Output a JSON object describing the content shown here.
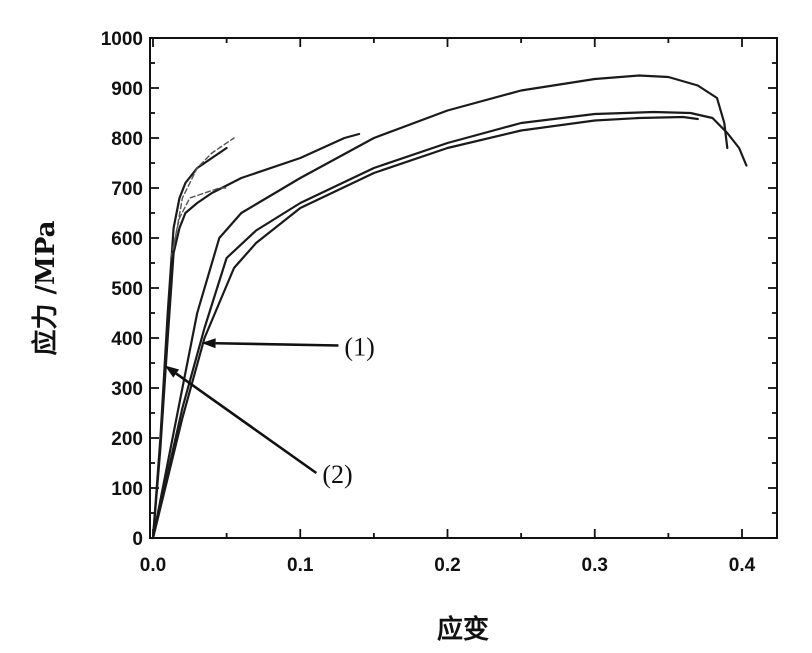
{
  "chart_data": {
    "type": "line",
    "title": "",
    "xlabel": "应变",
    "ylabel": "应力 /MPa",
    "xlim": [
      0.0,
      0.42
    ],
    "ylim": [
      0,
      1000
    ],
    "x_ticks": [
      0.0,
      0.1,
      0.2,
      0.3,
      0.4
    ],
    "x_tick_labels": [
      "0.0",
      "0.1",
      "0.2",
      "0.3",
      "0.4"
    ],
    "y_ticks": [
      0,
      100,
      200,
      300,
      400,
      500,
      600,
      700,
      800,
      900,
      1000
    ],
    "y_tick_labels": [
      "0",
      "100",
      "200",
      "300",
      "400",
      "500",
      "600",
      "700",
      "800",
      "900",
      "1000"
    ],
    "grid": false,
    "legend": "none",
    "series": [
      {
        "group": "(1)",
        "style": "solid",
        "points": [
          [
            0,
            0
          ],
          [
            0.01,
            150
          ],
          [
            0.02,
            300
          ],
          [
            0.03,
            450
          ],
          [
            0.045,
            600
          ],
          [
            0.06,
            650
          ],
          [
            0.1,
            720
          ],
          [
            0.15,
            800
          ],
          [
            0.2,
            855
          ],
          [
            0.25,
            895
          ],
          [
            0.3,
            918
          ],
          [
            0.33,
            925
          ],
          [
            0.35,
            922
          ],
          [
            0.37,
            905
          ],
          [
            0.383,
            880
          ],
          [
            0.388,
            830
          ],
          [
            0.39,
            780
          ]
        ]
      },
      {
        "group": "(1)",
        "style": "solid",
        "points": [
          [
            0,
            0
          ],
          [
            0.01,
            130
          ],
          [
            0.02,
            260
          ],
          [
            0.035,
            420
          ],
          [
            0.05,
            560
          ],
          [
            0.07,
            615
          ],
          [
            0.1,
            670
          ],
          [
            0.15,
            740
          ],
          [
            0.2,
            790
          ],
          [
            0.25,
            830
          ],
          [
            0.3,
            848
          ],
          [
            0.34,
            852
          ],
          [
            0.365,
            850
          ],
          [
            0.38,
            840
          ],
          [
            0.39,
            810
          ],
          [
            0.398,
            780
          ],
          [
            0.403,
            745
          ]
        ]
      },
      {
        "group": "(1)",
        "style": "solid",
        "points": [
          [
            0,
            0
          ],
          [
            0.01,
            120
          ],
          [
            0.02,
            240
          ],
          [
            0.035,
            400
          ],
          [
            0.055,
            540
          ],
          [
            0.07,
            590
          ],
          [
            0.1,
            660
          ],
          [
            0.15,
            730
          ],
          [
            0.2,
            780
          ],
          [
            0.25,
            815
          ],
          [
            0.3,
            835
          ],
          [
            0.33,
            840
          ],
          [
            0.36,
            842
          ],
          [
            0.37,
            838
          ]
        ]
      },
      {
        "group": "(2)",
        "style": "solid",
        "points": [
          [
            0,
            0
          ],
          [
            0.005,
            200
          ],
          [
            0.01,
            450
          ],
          [
            0.014,
            620
          ],
          [
            0.018,
            680
          ],
          [
            0.022,
            710
          ],
          [
            0.03,
            740
          ],
          [
            0.04,
            760
          ],
          [
            0.05,
            780
          ]
        ]
      },
      {
        "group": "(2)",
        "style": "solid",
        "points": [
          [
            0,
            0
          ],
          [
            0.005,
            180
          ],
          [
            0.01,
            400
          ],
          [
            0.014,
            570
          ],
          [
            0.018,
            620
          ],
          [
            0.022,
            650
          ],
          [
            0.03,
            670
          ],
          [
            0.04,
            690
          ],
          [
            0.06,
            720
          ],
          [
            0.1,
            760
          ],
          [
            0.13,
            800
          ],
          [
            0.14,
            808
          ]
        ]
      },
      {
        "group": "(2)",
        "style": "faint",
        "points": [
          [
            0.012,
            560
          ],
          [
            0.018,
            640
          ],
          [
            0.025,
            680
          ],
          [
            0.035,
            690
          ],
          [
            0.045,
            700
          ],
          [
            0.05,
            700
          ]
        ]
      },
      {
        "group": "(2)",
        "style": "faint",
        "points": [
          [
            0.014,
            580
          ],
          [
            0.02,
            680
          ],
          [
            0.03,
            740
          ],
          [
            0.04,
            770
          ],
          [
            0.05,
            790
          ],
          [
            0.055,
            800
          ]
        ]
      }
    ],
    "annotations": [
      {
        "label": "(1)",
        "arrow_to": [
          0.033,
          390
        ],
        "text_at": [
          0.13,
          365
        ]
      },
      {
        "label": "(2)",
        "arrow_to": [
          0.008,
          345
        ],
        "text_at": [
          0.115,
          110
        ]
      }
    ]
  }
}
